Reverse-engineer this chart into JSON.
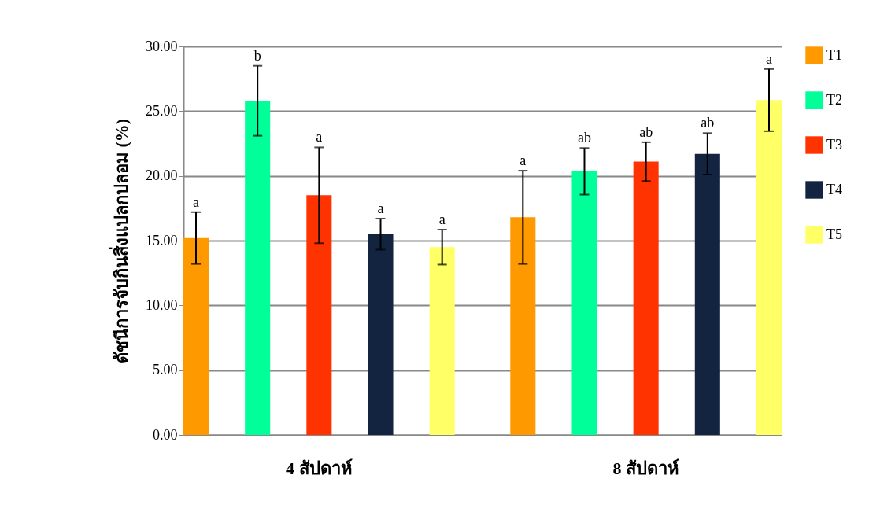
{
  "chart_data": {
    "type": "bar",
    "ylabel": "ดัชนีการจับกินสิ่งแปลกปลอม (%)",
    "categories": [
      "4 สัปดาห์",
      "8 สัปดาห์"
    ],
    "series": [
      {
        "name": "T1",
        "color": "#ff9900",
        "values": [
          15.2,
          16.8
        ],
        "errors": [
          2.0,
          3.6
        ]
      },
      {
        "name": "T2",
        "color": "#00ff99",
        "values": [
          25.8,
          20.35
        ],
        "errors": [
          2.7,
          1.8
        ]
      },
      {
        "name": "T3",
        "color": "#ff3300",
        "values": [
          18.5,
          21.1
        ],
        "errors": [
          3.7,
          1.5
        ]
      },
      {
        "name": "T4",
        "color": "#12243f",
        "values": [
          15.5,
          21.7
        ],
        "errors": [
          1.2,
          1.6
        ]
      },
      {
        "name": "T5",
        "color": "#ffff66",
        "values": [
          14.5,
          25.85
        ],
        "errors": [
          1.35,
          2.4
        ]
      }
    ],
    "annotations": [
      "a",
      "b",
      "a",
      "a",
      "a",
      "a",
      "ab",
      "ab",
      "ab",
      "a"
    ],
    "ylim": [
      0,
      30
    ],
    "yticks": [
      {
        "value": 0,
        "label": "0.00"
      },
      {
        "value": 5,
        "label": "5.00"
      },
      {
        "value": 10,
        "label": "10.00"
      },
      {
        "value": 15,
        "label": "15.00"
      },
      {
        "value": 20,
        "label": "20.00"
      },
      {
        "value": 25,
        "label": "25.00"
      },
      {
        "value": 30,
        "label": "30.00"
      }
    ],
    "grid": "y",
    "legend": "right"
  }
}
